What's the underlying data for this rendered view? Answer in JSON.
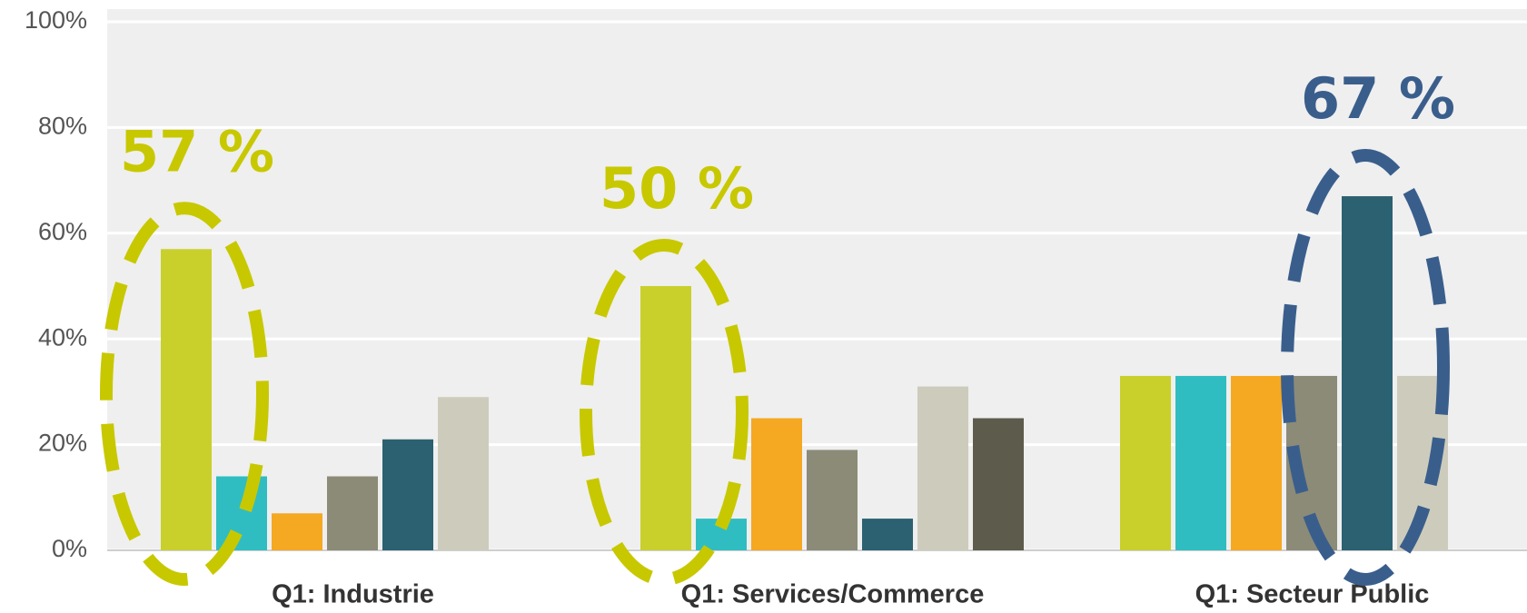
{
  "chart_data": {
    "type": "bar",
    "categories": [
      "Q1: Industrie",
      "Q1: Services/Commerce",
      "Q1: Secteur Public"
    ],
    "series": [
      {
        "color": "#c9d02c",
        "values": [
          57,
          50,
          33
        ]
      },
      {
        "color": "#30bdc1",
        "values": [
          14,
          6,
          33
        ]
      },
      {
        "color": "#f5a821",
        "values": [
          7,
          25,
          33
        ]
      },
      {
        "color": "#8c8b78",
        "values": [
          14,
          19,
          33
        ]
      },
      {
        "color": "#2b6170",
        "values": [
          21,
          6,
          67
        ]
      },
      {
        "color": "#cdccbc",
        "values": [
          29,
          31,
          33
        ]
      },
      {
        "color": "#5d5c4c",
        "values": [
          null,
          25,
          null
        ]
      }
    ],
    "ylim": [
      0,
      100
    ],
    "yticks": [
      {
        "value": 0,
        "label": "0%"
      },
      {
        "value": 20,
        "label": "20%"
      },
      {
        "value": 40,
        "label": "40%"
      },
      {
        "value": 60,
        "label": "60%"
      },
      {
        "value": 80,
        "label": "80%"
      },
      {
        "value": 100,
        "label": "100%"
      }
    ],
    "grid": true,
    "annotations": [
      {
        "text": "57 %",
        "color": "#c8c800",
        "category": 0,
        "series": 0
      },
      {
        "text": "50 %",
        "color": "#c8c800",
        "category": 1,
        "series": 0
      },
      {
        "text": "67 %",
        "color": "#3a5e8c",
        "category": 2,
        "series": 4
      }
    ]
  }
}
